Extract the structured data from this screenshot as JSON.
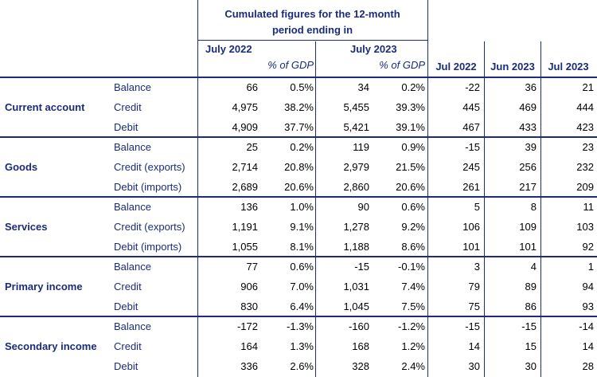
{
  "header": {
    "cumulated_title_line1": "Cumulated figures for the 12-month",
    "cumulated_title_line2": "period ending in",
    "period1": "July 2022",
    "period2": "July 2023",
    "pct_gdp": "% of GDP",
    "monthly": [
      "Jul 2022",
      "Jun 2023",
      "Jul 2023"
    ]
  },
  "sections": [
    {
      "name": "Current account",
      "rows": [
        {
          "label": "Balance",
          "v1": "66",
          "p1": "0.5%",
          "v2": "34",
          "p2": "0.2%",
          "m": [
            "-22",
            "36",
            "21"
          ]
        },
        {
          "label": "Credit",
          "v1": "4,975",
          "p1": "38.2%",
          "v2": "5,455",
          "p2": "39.3%",
          "m": [
            "445",
            "469",
            "444"
          ]
        },
        {
          "label": "Debit",
          "v1": "4,909",
          "p1": "37.7%",
          "v2": "5,421",
          "p2": "39.1%",
          "m": [
            "467",
            "433",
            "423"
          ]
        }
      ]
    },
    {
      "name": "Goods",
      "rows": [
        {
          "label": "Balance",
          "v1": "25",
          "p1": "0.2%",
          "v2": "119",
          "p2": "0.9%",
          "m": [
            "-15",
            "39",
            "23"
          ]
        },
        {
          "label": "Credit (exports)",
          "v1": "2,714",
          "p1": "20.8%",
          "v2": "2,979",
          "p2": "21.5%",
          "m": [
            "245",
            "256",
            "232"
          ]
        },
        {
          "label": "Debit (imports)",
          "v1": "2,689",
          "p1": "20.6%",
          "v2": "2,860",
          "p2": "20.6%",
          "m": [
            "261",
            "217",
            "209"
          ]
        }
      ]
    },
    {
      "name": "Services",
      "rows": [
        {
          "label": "Balance",
          "v1": "136",
          "p1": "1.0%",
          "v2": "90",
          "p2": "0.6%",
          "m": [
            "5",
            "8",
            "11"
          ]
        },
        {
          "label": "Credit (exports)",
          "v1": "1,191",
          "p1": "9.1%",
          "v2": "1,278",
          "p2": "9.2%",
          "m": [
            "106",
            "109",
            "103"
          ]
        },
        {
          "label": "Debit (imports)",
          "v1": "1,055",
          "p1": "8.1%",
          "v2": "1,188",
          "p2": "8.6%",
          "m": [
            "101",
            "101",
            "92"
          ]
        }
      ]
    },
    {
      "name": "Primary income",
      "rows": [
        {
          "label": "Balance",
          "v1": "77",
          "p1": "0.6%",
          "v2": "-15",
          "p2": "-0.1%",
          "m": [
            "3",
            "4",
            "1"
          ]
        },
        {
          "label": "Credit",
          "v1": "906",
          "p1": "7.0%",
          "v2": "1,031",
          "p2": "7.4%",
          "m": [
            "79",
            "89",
            "94"
          ]
        },
        {
          "label": "Debit",
          "v1": "830",
          "p1": "6.4%",
          "v2": "1,045",
          "p2": "7.5%",
          "m": [
            "75",
            "86",
            "93"
          ]
        }
      ]
    },
    {
      "name": "Secondary income",
      "rows": [
        {
          "label": "Balance",
          "v1": "-172",
          "p1": "-1.3%",
          "v2": "-160",
          "p2": "-1.2%",
          "m": [
            "-15",
            "-15",
            "-14"
          ]
        },
        {
          "label": "Credit",
          "v1": "164",
          "p1": "1.3%",
          "v2": "168",
          "p2": "1.2%",
          "m": [
            "14",
            "15",
            "14"
          ]
        },
        {
          "label": "Debit",
          "v1": "336",
          "p1": "2.6%",
          "v2": "328",
          "p2": "2.4%",
          "m": [
            "30",
            "30",
            "28"
          ]
        }
      ]
    }
  ]
}
